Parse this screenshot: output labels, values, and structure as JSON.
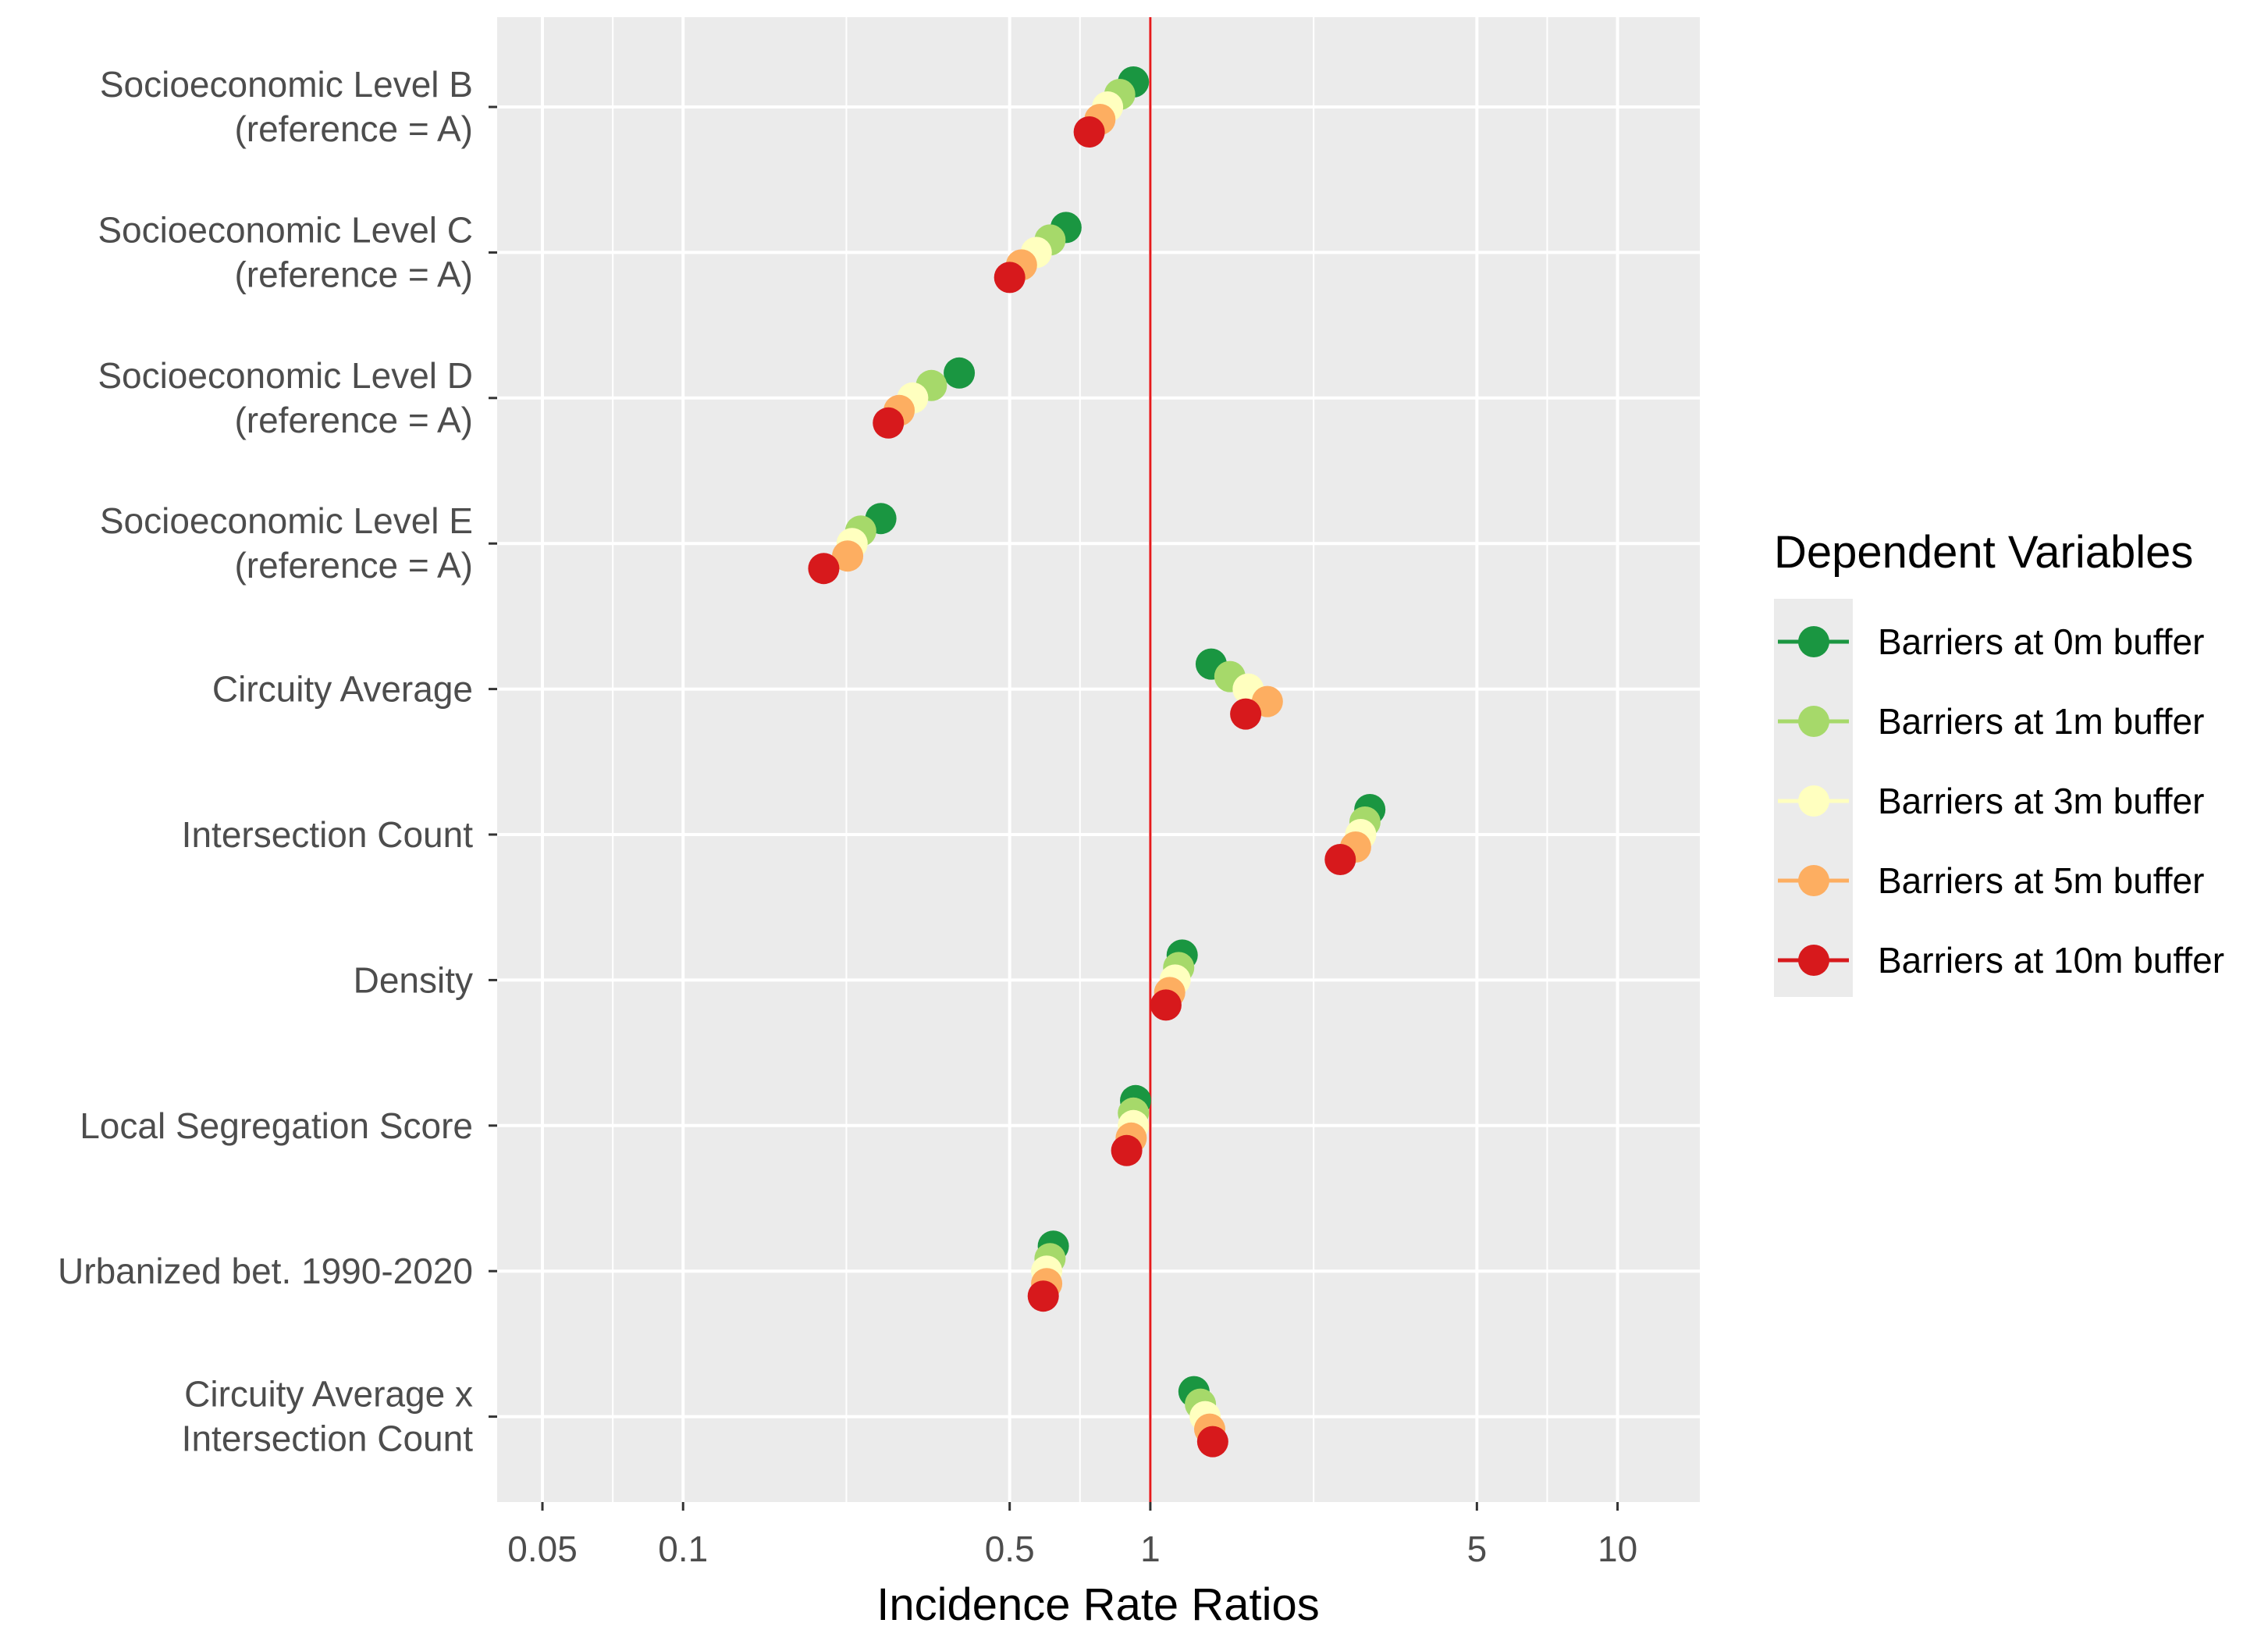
{
  "chart_data": {
    "type": "scatter",
    "subtype": "dodged-point-plot",
    "x_scale": "log10",
    "xlabel": "Incidence Rate Ratios",
    "xlim": [
      0.04,
      15
    ],
    "xticks": [
      0.05,
      0.1,
      0.5,
      1,
      5,
      10
    ],
    "xtick_labels": [
      "0.05",
      "0.1",
      "0.5",
      "1",
      "5",
      "10"
    ],
    "reference_line": {
      "x": 1,
      "color": "#e41a1c"
    },
    "grid": true,
    "categories": [
      [
        "Socioeconomic Level B",
        "(reference = A)"
      ],
      [
        "Socioeconomic Level C",
        "(reference = A)"
      ],
      [
        "Socioeconomic Level D",
        "(reference = A)"
      ],
      [
        "Socioeconomic Level E",
        "(reference = A)"
      ],
      [
        "Circuity Average"
      ],
      [
        "Intersection Count"
      ],
      [
        "Density"
      ],
      [
        "Local Segregation Score"
      ],
      [
        "Urbanized bet. 1990-2020"
      ],
      [
        "Circuity Average x",
        "Intersection Count"
      ]
    ],
    "legend": {
      "title": "Dependent Variables",
      "position": "right"
    },
    "series": [
      {
        "name": "Barriers at 0m buffer",
        "color": "#1a9641",
        "values": [
          0.92,
          0.66,
          0.39,
          0.265,
          1.35,
          2.95,
          1.17,
          0.93,
          0.62,
          1.24
        ]
      },
      {
        "name": "Barriers at 1m buffer",
        "color": "#a6d96a",
        "values": [
          0.86,
          0.61,
          0.34,
          0.24,
          1.48,
          2.88,
          1.15,
          0.92,
          0.61,
          1.28
        ]
      },
      {
        "name": "Barriers at 3m buffer",
        "color": "#ffffbf",
        "values": [
          0.81,
          0.57,
          0.31,
          0.23,
          1.62,
          2.82,
          1.13,
          0.92,
          0.6,
          1.31
        ]
      },
      {
        "name": "Barriers at 5m buffer",
        "color": "#fdae61",
        "values": [
          0.78,
          0.53,
          0.29,
          0.225,
          1.78,
          2.75,
          1.1,
          0.91,
          0.6,
          1.34
        ]
      },
      {
        "name": "Barriers at 10m buffer",
        "color": "#d7191c",
        "values": [
          0.74,
          0.5,
          0.275,
          0.2,
          1.6,
          2.55,
          1.08,
          0.89,
          0.59,
          1.36
        ]
      }
    ]
  }
}
